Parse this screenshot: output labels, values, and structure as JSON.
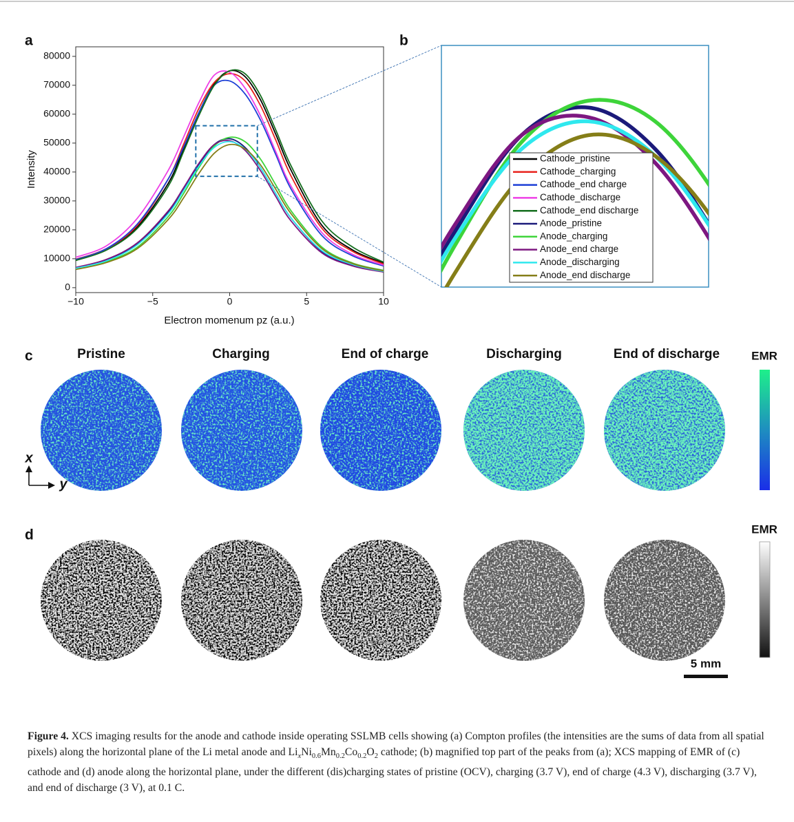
{
  "panel_labels": [
    "a",
    "b",
    "c",
    "d"
  ],
  "chart_data": {
    "type": "line",
    "xlabel": "Electron momenum pz (a.u.)",
    "ylabel": "Intensity",
    "x": [
      -10,
      -8,
      -6,
      -4,
      -3,
      -2,
      -1,
      0,
      1,
      2,
      3,
      4,
      6,
      8,
      10
    ],
    "xlim": [
      -10,
      10
    ],
    "ylim": [
      -1700,
      83300
    ],
    "xticks": [
      {
        "value": -10,
        "label": "−10"
      },
      {
        "value": -5,
        "label": "−5"
      },
      0,
      5,
      10
    ],
    "yticks": [
      0,
      10000,
      20000,
      30000,
      40000,
      50000,
      60000,
      70000,
      80000
    ],
    "inset_xlim": [
      -2.2,
      1.8
    ],
    "inset_ylim": [
      38500,
      56000
    ],
    "series": [
      {
        "name": "Cathode_pristine",
        "color": "#000000",
        "values": [
          9600,
          13500,
          21000,
          36000,
          48000,
          60500,
          70500,
          75000,
          73000,
          65000,
          53000,
          40500,
          21500,
          13000,
          8500
        ]
      },
      {
        "name": "Cathode_charging",
        "color": "#e8231c",
        "values": [
          9800,
          13500,
          21500,
          37500,
          49500,
          62000,
          71000,
          74000,
          71500,
          63000,
          51000,
          38500,
          20500,
          12500,
          8200
        ]
      },
      {
        "name": "Cathode_end charge",
        "color": "#1c3fd6",
        "values": [
          9700,
          13500,
          22000,
          37500,
          48500,
          60500,
          70000,
          71500,
          67000,
          58000,
          46000,
          34000,
          18000,
          11000,
          7500
        ]
      },
      {
        "name": "Cathode_discharge",
        "color": "#ee3fe6",
        "values": [
          10500,
          14500,
          24000,
          40500,
          52000,
          64000,
          73500,
          74500,
          69000,
          59500,
          47000,
          35000,
          19000,
          11500,
          7800
        ]
      },
      {
        "name": "Cathode_end discharge",
        "color": "#146e1e",
        "values": [
          9400,
          13000,
          20500,
          35000,
          47000,
          59500,
          70000,
          75000,
          74000,
          66500,
          54500,
          42000,
          23000,
          14000,
          8800
        ]
      },
      {
        "name": "Anode_pristine",
        "color": "#1b1a7a",
        "values": [
          6800,
          9500,
          15000,
          26000,
          34000,
          42500,
          49500,
          51500,
          48500,
          41500,
          32500,
          24000,
          12500,
          7800,
          5500
        ]
      },
      {
        "name": "Anode_charging",
        "color": "#3ed43a",
        "values": [
          6500,
          9000,
          14000,
          24500,
          32500,
          41500,
          49000,
          52000,
          50500,
          44500,
          35500,
          26500,
          14000,
          8500,
          6000
        ]
      },
      {
        "name": "Anode_end charge",
        "color": "#7d1781",
        "values": [
          7000,
          9800,
          15500,
          26500,
          34500,
          43000,
          49500,
          50800,
          47500,
          40500,
          31500,
          23000,
          12000,
          7500,
          5400
        ]
      },
      {
        "name": "Anode_discharging",
        "color": "#2fe8ee",
        "values": [
          6700,
          9300,
          14800,
          25500,
          33500,
          42000,
          48500,
          50500,
          48000,
          41500,
          32500,
          24000,
          12800,
          8000,
          5600
        ]
      },
      {
        "name": "Anode_end discharge",
        "color": "#857e18",
        "values": [
          6300,
          8700,
          13500,
          23500,
          31000,
          39500,
          46500,
          49500,
          48000,
          42500,
          34000,
          25500,
          13500,
          8300,
          5800
        ]
      }
    ]
  },
  "maps": {
    "titles": [
      "Pristine",
      "Charging",
      "End of charge",
      "Discharging",
      "End of discharge"
    ],
    "cathode_colorbar_label": "EMR",
    "anode_colorbar_label": "EMR",
    "axis_x": "x",
    "axis_y": "y",
    "scale_bar": "5 mm"
  },
  "caption": {
    "label": "Figure 4.",
    "parts": [
      " XCS imaging results for the anode and cathode inside operating SSLMB cells showing (a) Compton profiles (the intensities are the sums of data from all spatial pixels) along the horizontal plane of the Li metal anode and Li",
      "x",
      "Ni",
      "0.6",
      "Mn",
      "0.2",
      "Co",
      "0.2",
      "O",
      "2",
      " cathode; (b) magnified top part of the peaks from (a); XCS mapping of EMR of (c) cathode and (d) anode along the horizontal plane, under the different (dis)charging states of pristine (OCV), charging (3.7 V), end of charge (4.3 V), discharging (3.7 V), and end of discharge (3 V), at 0.1 C."
    ]
  }
}
